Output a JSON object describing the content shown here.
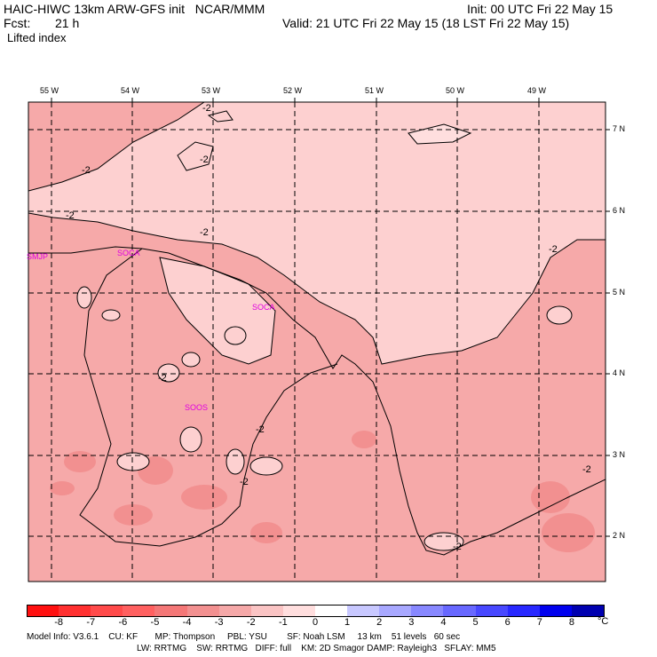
{
  "header": {
    "model": "HAIC-HIWC 13km ARW-GFS init   NCAR/MMM",
    "fcst_label": "Fcst:",
    "fcst_value": "21 h",
    "field": "Lifted index",
    "init": "Init: 00 UTC Fri 22 May 15",
    "valid": "Valid: 21 UTC Fri 22 May 15 (18 LST Fri 22 May 15)"
  },
  "axes": {
    "lon_labels": [
      "55 W",
      "54 W",
      "53 W",
      "52 W",
      "51 W",
      "50 W",
      "49 W"
    ],
    "lat_labels": [
      "7 N",
      "6 N",
      "5 N",
      "4 N",
      "3 N",
      "2 N"
    ]
  },
  "stations": [
    "SMJP",
    "SOCA",
    "SOCA",
    "SOOS"
  ],
  "contour_labels": [
    "-2",
    "-2",
    "-2",
    "-2",
    "-2",
    "-2",
    "-2",
    "-2",
    "-2",
    "-2",
    "-2"
  ],
  "colorbar": {
    "labels": [
      "-8",
      "-7",
      "-6",
      "-5",
      "-4",
      "-3",
      "-2",
      "-1",
      "0",
      "1",
      "2",
      "3",
      "4",
      "5",
      "6",
      "7",
      "8"
    ],
    "unit": "°C",
    "colors": [
      "#ff1010",
      "#ff3030",
      "#ff4a4a",
      "#ff6060",
      "#f47777",
      "#f29090",
      "#f5a8a8",
      "#fac4c4",
      "#ffdede",
      "#ffffff",
      "#c8c8ff",
      "#a8a8ff",
      "#8888ff",
      "#6868ff",
      "#4848ff",
      "#2828ff",
      "#0000ee",
      "#0000b0"
    ]
  },
  "footer": {
    "line1": "Model Info: V3.6.1    CU: KF       MP: Thompson     PBL: YSU        SF: Noah LSM     13 km    51 levels   60 sec",
    "line2": "LW: RRTMG    SW: RRTMG   DIFF: full    KM: 2D Smagor DAMP: Rayleigh3   SFLAY: MM5"
  },
  "map_colors": {
    "shade_m1": "#fdd0d0",
    "shade_m2": "#f6a9a9",
    "shade_m3": "#f38e8e",
    "shade_0": "#ffe8e8"
  }
}
